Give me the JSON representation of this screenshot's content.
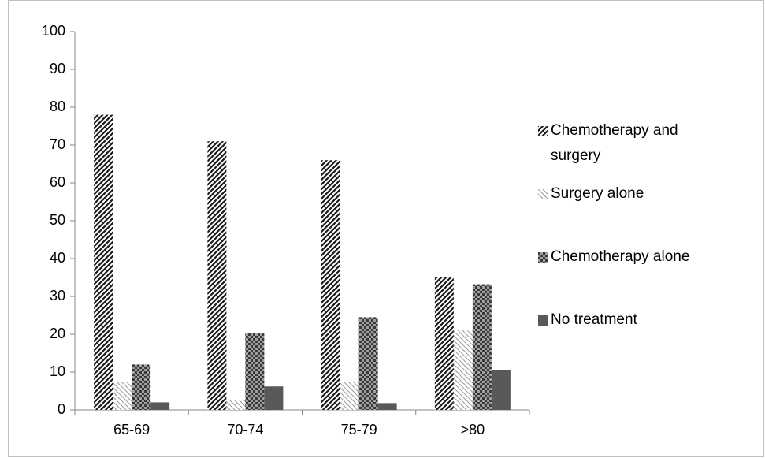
{
  "chart_data": {
    "type": "bar",
    "categories": [
      "65-69",
      "70-74",
      "75-79",
      ">80"
    ],
    "series": [
      {
        "name": "Chemotherapy and surgery",
        "color": "#1a1a1a",
        "pattern": "dark-diagonal",
        "values": [
          78,
          71,
          66,
          35
        ]
      },
      {
        "name": "Surgery alone",
        "color": "#9a9a9a",
        "pattern": "light-diagonal",
        "values": [
          7.5,
          2.5,
          7.5,
          21
        ]
      },
      {
        "name": "Chemotherapy alone",
        "color": "#3a3a3a",
        "pattern": "checker",
        "values": [
          12,
          20.2,
          24.5,
          33.2
        ]
      },
      {
        "name": "No treatment",
        "color": "#595959",
        "pattern": "solid",
        "values": [
          2,
          6.2,
          1.8,
          10.5
        ]
      }
    ],
    "ylim": [
      0,
      100
    ],
    "yticks": [
      0,
      10,
      20,
      30,
      40,
      50,
      60,
      70,
      80,
      90,
      100
    ],
    "grid": false,
    "legend": "right"
  }
}
